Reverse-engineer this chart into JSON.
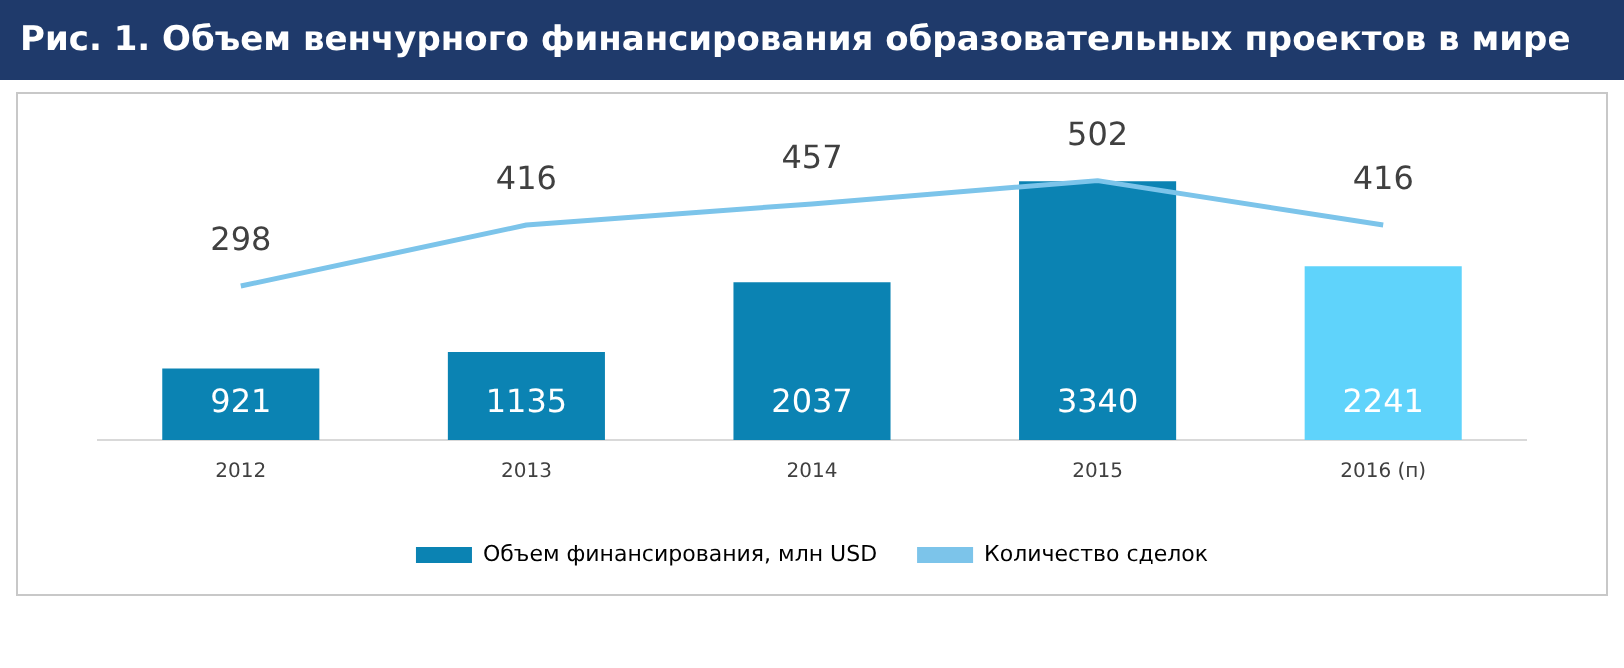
{
  "chart_data": {
    "type": "bar",
    "title": "Рис. 1. Объем венчурного финансирования образовательных проектов в мире",
    "categories": [
      "2012",
      "2013",
      "2014",
      "2015",
      "2016 (п)"
    ],
    "series": [
      {
        "name": "Объем финансирования, млн USD",
        "colors": [
          "#0b83b3",
          "#0b83b3",
          "#0b83b3",
          "#0b83b3",
          "#5fd3fb"
        ],
        "values": [
          921,
          1135,
          2037,
          3340,
          2241
        ]
      },
      {
        "name": "Количество сделок",
        "type": "line",
        "axis": "y2",
        "color": "#7cc4ea",
        "values": [
          298,
          416,
          457,
          502,
          416
        ]
      }
    ],
    "tick_labels": "x",
    "grid": false,
    "legend": "bottom",
    "data_labels": true,
    "marker": "none"
  }
}
